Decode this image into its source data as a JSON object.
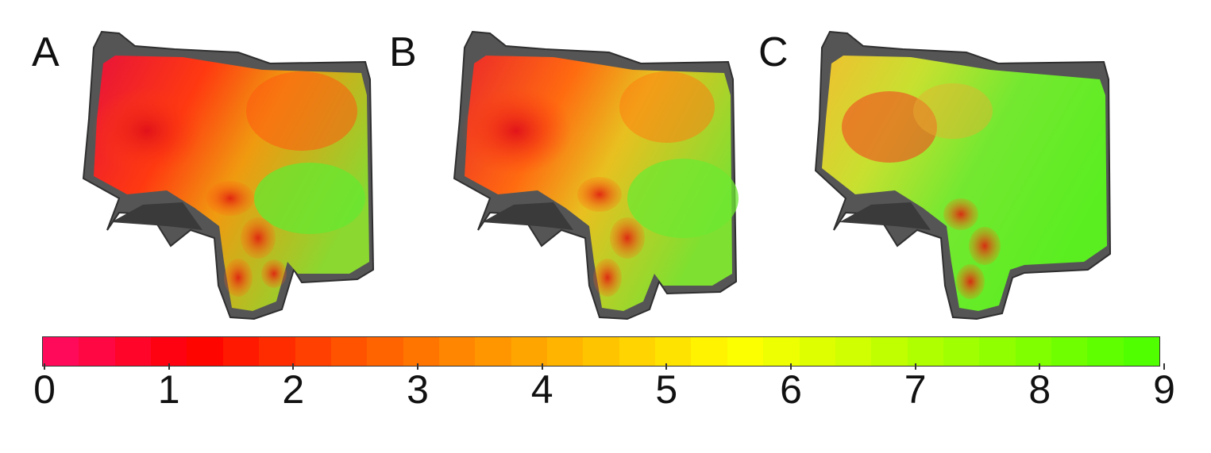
{
  "panels": [
    {
      "label": "A",
      "green_level": 0.25
    },
    {
      "label": "B",
      "green_level": 0.35
    },
    {
      "label": "C",
      "green_level": 0.75
    }
  ],
  "colorbar": {
    "min": 0,
    "max": 9,
    "ticks": [
      "0",
      "1",
      "2",
      "3",
      "4",
      "5",
      "6",
      "7",
      "8",
      "9"
    ],
    "colors": [
      "#ff0a5a",
      "#ff0000",
      "#ff4a00",
      "#ff8a00",
      "#ffc400",
      "#ffff00",
      "#c8ff00",
      "#8cff00",
      "#50ff00"
    ]
  },
  "colors": {
    "shell": "#555555",
    "shell_edge": "#2f2f2f"
  }
}
